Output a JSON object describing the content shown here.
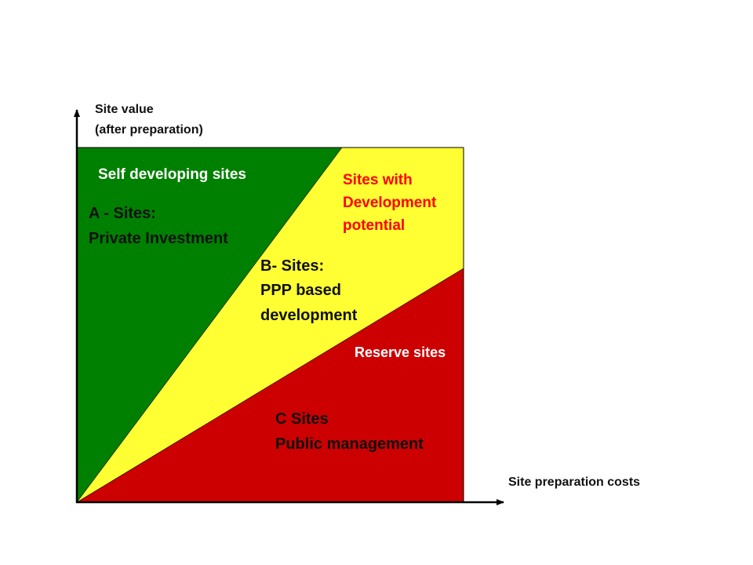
{
  "axes": {
    "y_label_line1": "Site value",
    "y_label_line2": "(after preparation)",
    "x_label": "Site preparation costs"
  },
  "colors": {
    "green": "#008000",
    "yellow": "#ffff33",
    "red": "#cc0000"
  },
  "regions": {
    "green_title": "Self developing sites",
    "a_line1": "A - Sites:",
    "a_line2": "Private Investment",
    "yellow_title_line1": "Sites with",
    "yellow_title_line2": "Development",
    "yellow_title_line3": "potential",
    "b_line1": "B- Sites:",
    "b_line2": "PPP based",
    "b_line3": "development",
    "red_title": "Reserve sites",
    "c_line1": "C Sites",
    "c_line2": "Public management"
  }
}
